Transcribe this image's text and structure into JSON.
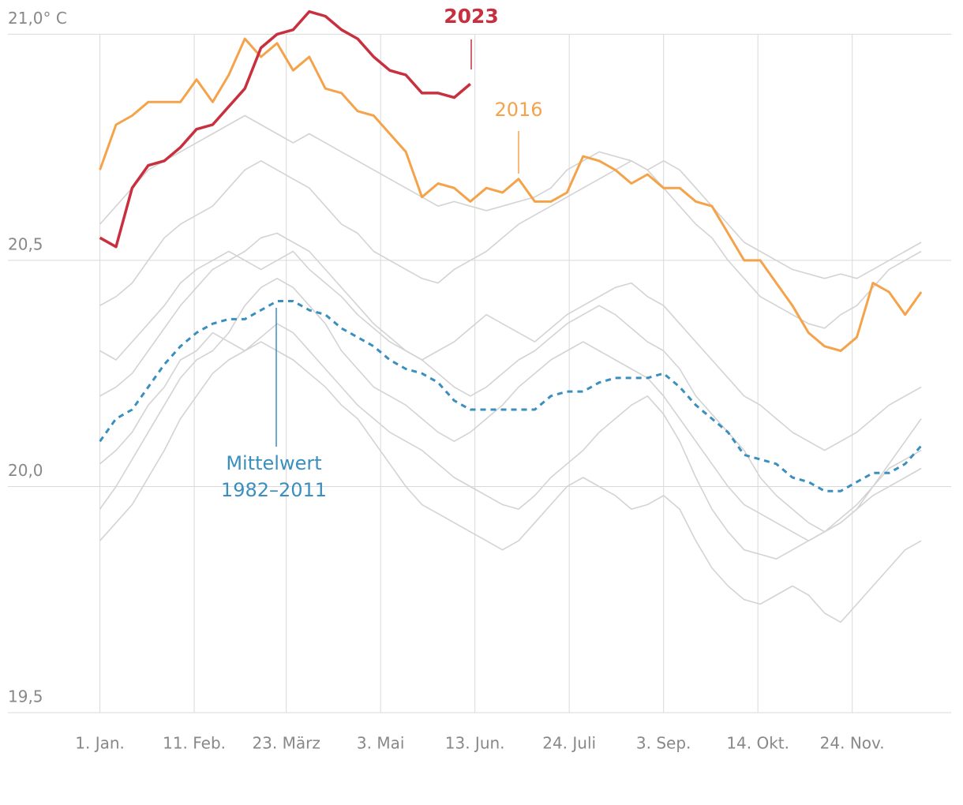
{
  "chart_data": {
    "type": "line",
    "x": [
      1,
      8,
      15,
      22,
      29,
      36,
      43,
      50,
      57,
      64,
      71,
      78,
      85,
      92,
      99,
      106,
      113,
      120,
      127,
      134,
      141,
      148,
      155,
      162,
      169,
      176,
      183,
      190,
      197,
      204,
      211,
      218,
      225,
      232,
      239,
      246,
      253,
      260,
      267,
      274,
      281,
      288,
      295,
      302,
      309,
      316,
      323,
      330,
      337,
      344,
      351,
      358
    ],
    "xlim": [
      -39,
      371
    ],
    "xticks": [
      {
        "value": 1,
        "label": "1. Jan."
      },
      {
        "value": 42,
        "label": "11. Feb."
      },
      {
        "value": 82,
        "label": "23. März"
      },
      {
        "value": 123,
        "label": "3. Mai"
      },
      {
        "value": 164,
        "label": "13. Jun."
      },
      {
        "value": 205,
        "label": "24. Juli"
      },
      {
        "value": 246,
        "label": "3. Sep."
      },
      {
        "value": 287,
        "label": "14. Okt."
      },
      {
        "value": 328,
        "label": "24. Nov."
      }
    ],
    "ylim": [
      19.5,
      21.06
    ],
    "yticks": [
      {
        "value": 21.0,
        "label": "21,0° C"
      },
      {
        "value": 20.5,
        "label": "20,5"
      },
      {
        "value": 20.0,
        "label": "20,0"
      },
      {
        "value": 19.5,
        "label": "19,5"
      }
    ],
    "grid": true,
    "series": [
      {
        "color": "#d3d3d3",
        "values": [
          20.58,
          20.62,
          20.66,
          20.7,
          20.72,
          20.74,
          20.76,
          20.78,
          20.8,
          20.82,
          20.8,
          20.78,
          20.76,
          20.78,
          20.76,
          20.74,
          20.72,
          20.7,
          20.68,
          20.66,
          20.64,
          20.62,
          20.63,
          20.62,
          20.61,
          20.62,
          20.63,
          20.64,
          20.66,
          20.7,
          20.72,
          20.74,
          20.73,
          20.72,
          20.7,
          20.72,
          20.7,
          20.66,
          20.62,
          20.58,
          20.54,
          20.52,
          20.5,
          20.48,
          20.47,
          20.46,
          20.47,
          20.46,
          20.48,
          20.5,
          20.52,
          20.54
        ]
      },
      {
        "color": "#d3d3d3",
        "values": [
          20.4,
          20.42,
          20.45,
          20.5,
          20.55,
          20.58,
          20.6,
          20.62,
          20.66,
          20.7,
          20.72,
          20.7,
          20.68,
          20.66,
          20.62,
          20.58,
          20.56,
          20.52,
          20.5,
          20.48,
          20.46,
          20.45,
          20.48,
          20.5,
          20.52,
          20.55,
          20.58,
          20.6,
          20.62,
          20.64,
          20.66,
          20.68,
          20.7,
          20.72,
          20.7,
          20.66,
          20.62,
          20.58,
          20.55,
          20.5,
          20.46,
          20.42,
          20.4,
          20.38,
          20.36,
          20.35,
          20.38,
          20.4,
          20.44,
          20.48,
          20.5,
          20.52
        ]
      },
      {
        "color": "#d3d3d3",
        "values": [
          20.3,
          20.28,
          20.32,
          20.36,
          20.4,
          20.45,
          20.48,
          20.5,
          20.52,
          20.5,
          20.48,
          20.5,
          20.52,
          20.48,
          20.45,
          20.42,
          20.38,
          20.35,
          20.32,
          20.3,
          20.28,
          20.3,
          20.32,
          20.35,
          20.38,
          20.36,
          20.34,
          20.32,
          20.35,
          20.38,
          20.4,
          20.42,
          20.44,
          20.45,
          20.42,
          20.4,
          20.36,
          20.32,
          20.28,
          20.24,
          20.2,
          20.18,
          20.15,
          20.12,
          20.1,
          20.08,
          20.1,
          20.12,
          20.15,
          20.18,
          20.2,
          20.22
        ]
      },
      {
        "color": "#d3d3d3",
        "values": [
          20.05,
          20.08,
          20.12,
          20.18,
          20.22,
          20.28,
          20.3,
          20.34,
          20.32,
          20.3,
          20.33,
          20.36,
          20.34,
          20.3,
          20.26,
          20.22,
          20.18,
          20.15,
          20.12,
          20.1,
          20.08,
          20.05,
          20.02,
          20.0,
          19.98,
          19.96,
          19.95,
          19.98,
          20.02,
          20.05,
          20.08,
          20.12,
          20.15,
          20.18,
          20.2,
          20.16,
          20.1,
          20.02,
          19.95,
          19.9,
          19.86,
          19.85,
          19.84,
          19.86,
          19.88,
          19.9,
          19.92,
          19.95,
          19.98,
          20.0,
          20.02,
          20.04
        ]
      },
      {
        "color": "#d3d3d3",
        "values": [
          19.88,
          19.92,
          19.96,
          20.02,
          20.08,
          20.15,
          20.2,
          20.25,
          20.28,
          20.3,
          20.32,
          20.3,
          20.28,
          20.25,
          20.22,
          20.18,
          20.15,
          20.1,
          20.05,
          20.0,
          19.96,
          19.94,
          19.92,
          19.9,
          19.88,
          19.86,
          19.88,
          19.92,
          19.96,
          20.0,
          20.02,
          20.0,
          19.98,
          19.95,
          19.96,
          19.98,
          19.95,
          19.88,
          19.82,
          19.78,
          19.75,
          19.74,
          19.76,
          19.78,
          19.76,
          19.72,
          19.7,
          19.74,
          19.78,
          19.82,
          19.86,
          19.88
        ]
      },
      {
        "color": "#d3d3d3",
        "values": [
          20.2,
          20.22,
          20.25,
          20.3,
          20.35,
          20.4,
          20.44,
          20.48,
          20.5,
          20.52,
          20.55,
          20.56,
          20.54,
          20.52,
          20.48,
          20.44,
          20.4,
          20.36,
          20.33,
          20.3,
          20.28,
          20.25,
          20.22,
          20.2,
          20.22,
          20.25,
          20.28,
          20.3,
          20.33,
          20.36,
          20.38,
          20.4,
          20.38,
          20.35,
          20.32,
          20.3,
          20.26,
          20.2,
          20.16,
          20.12,
          20.08,
          20.02,
          19.98,
          19.95,
          19.92,
          19.9,
          19.92,
          19.95,
          20.0,
          20.05,
          20.1,
          20.15
        ]
      },
      {
        "color": "#d3d3d3",
        "values": [
          19.95,
          20.0,
          20.06,
          20.12,
          20.18,
          20.24,
          20.28,
          20.3,
          20.34,
          20.4,
          20.44,
          20.46,
          20.44,
          20.4,
          20.36,
          20.3,
          20.26,
          20.22,
          20.2,
          20.18,
          20.15,
          20.12,
          20.1,
          20.12,
          20.15,
          20.18,
          20.22,
          20.25,
          20.28,
          20.3,
          20.32,
          20.3,
          20.28,
          20.26,
          20.24,
          20.2,
          20.15,
          20.1,
          20.05,
          20.0,
          19.96,
          19.94,
          19.92,
          19.9,
          19.88,
          19.9,
          19.93,
          19.96,
          20.0,
          20.04,
          20.06,
          20.08
        ]
      },
      {
        "name": "Mittelwert 1982–2011",
        "color": "#3a8fbf",
        "dashed": true,
        "values": [
          20.1,
          20.15,
          20.17,
          20.22,
          20.27,
          20.31,
          20.34,
          20.36,
          20.37,
          20.37,
          20.39,
          20.41,
          20.41,
          20.39,
          20.38,
          20.35,
          20.33,
          20.31,
          20.28,
          20.26,
          20.25,
          20.23,
          20.19,
          20.17,
          20.17,
          20.17,
          20.17,
          20.17,
          20.2,
          20.21,
          20.21,
          20.23,
          20.24,
          20.24,
          20.24,
          20.25,
          20.22,
          20.18,
          20.15,
          20.12,
          20.07,
          20.06,
          20.05,
          20.02,
          20.01,
          19.99,
          19.99,
          20.01,
          20.03,
          20.03,
          20.05,
          20.09
        ]
      },
      {
        "name": "2016",
        "color": "#f5a34a",
        "values": [
          20.7,
          20.8,
          20.82,
          20.85,
          20.85,
          20.85,
          20.9,
          20.85,
          20.91,
          20.99,
          20.95,
          20.98,
          20.92,
          20.95,
          20.88,
          20.87,
          20.83,
          20.82,
          20.78,
          20.74,
          20.64,
          20.67,
          20.66,
          20.63,
          20.66,
          20.65,
          20.68,
          20.63,
          20.63,
          20.65,
          20.73,
          20.72,
          20.7,
          20.67,
          20.69,
          20.66,
          20.66,
          20.63,
          20.62,
          20.56,
          20.5,
          20.5,
          20.45,
          20.4,
          20.34,
          20.31,
          20.3,
          20.33,
          20.45,
          20.43,
          20.38,
          20.43
        ]
      },
      {
        "name": "2023",
        "color": "#c8303f",
        "bold": true,
        "values": [
          20.55,
          20.53,
          20.66,
          20.71,
          20.72,
          20.75,
          20.79,
          20.8,
          20.84,
          20.88,
          20.97,
          21.0,
          21.01,
          21.05,
          21.04,
          21.01,
          20.99,
          20.95,
          20.92,
          20.91,
          20.87,
          20.87,
          20.86,
          20.89,
          null,
          null,
          null,
          null,
          null,
          null,
          null,
          null,
          null,
          null,
          null,
          null,
          null,
          null,
          null,
          null,
          null,
          null,
          null,
          null,
          null,
          null,
          null,
          null,
          null,
          null,
          null,
          null
        ]
      }
    ]
  }
}
